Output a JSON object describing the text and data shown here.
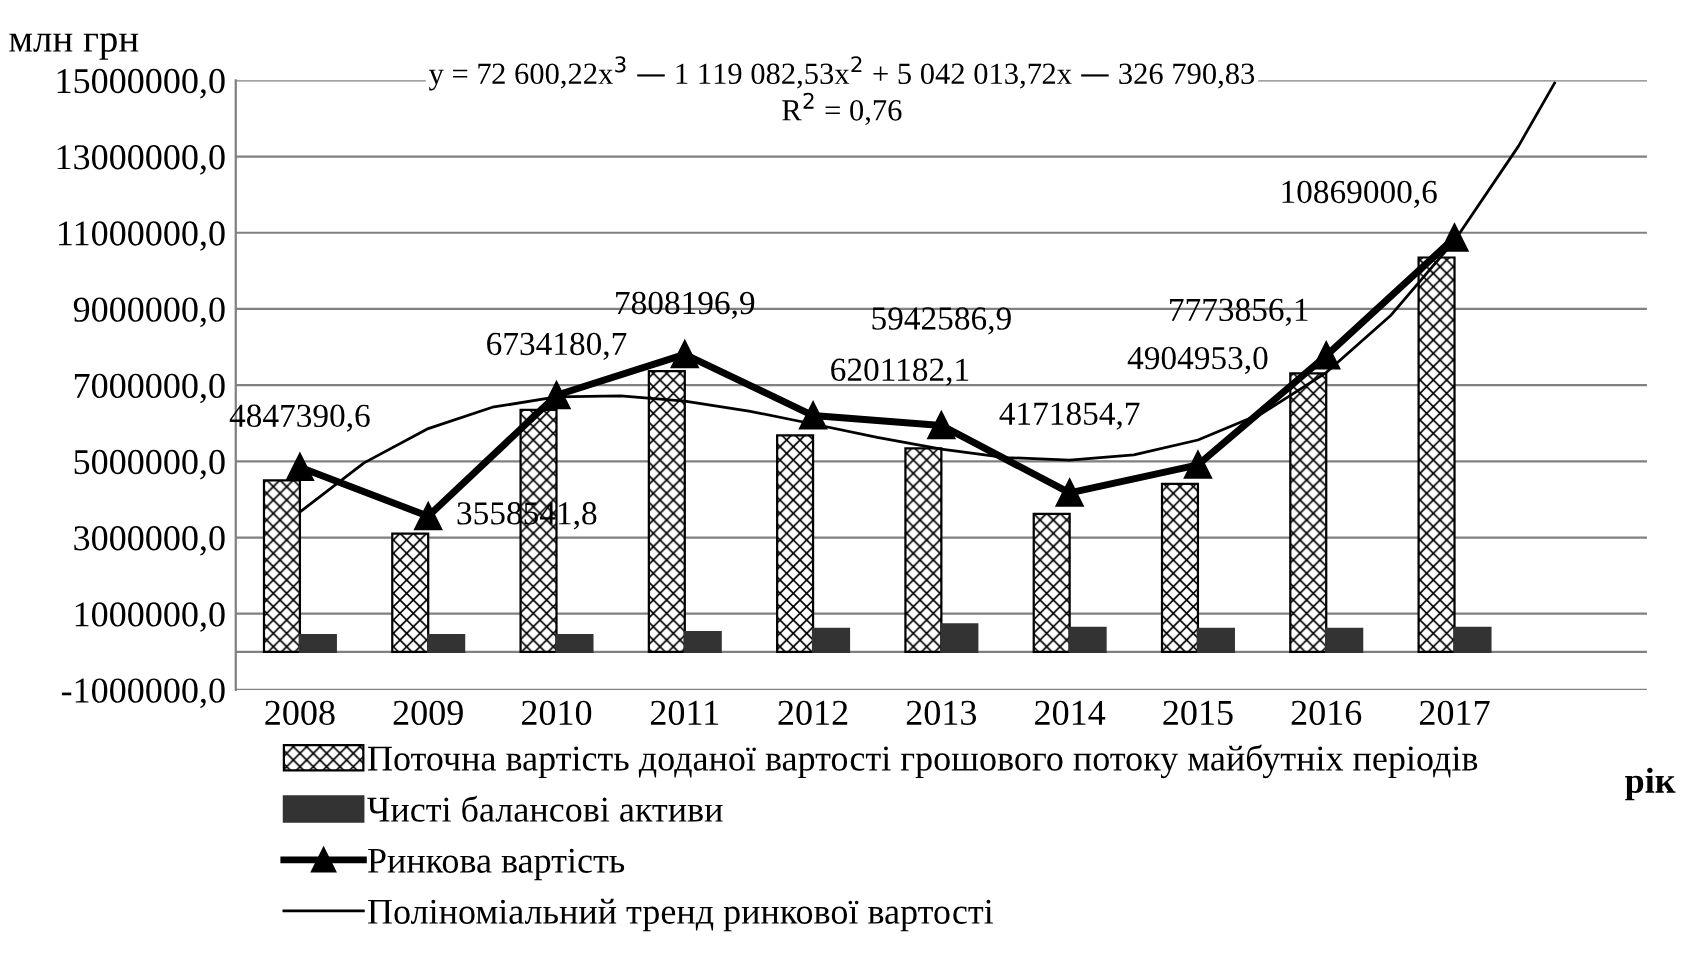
{
  "chart_data": {
    "type": "line",
    "ylabel": "млн грн",
    "xlabel": "рік",
    "annotations": [
      "y = 72 600,22x$^{3}$ — 1 119 082,53x$^{2}$ + 5 042 013,72x — 326 790,83",
      "R$^{2}$ = 0,76"
    ],
    "x": [
      2008,
      2009,
      2010,
      2011,
      2012,
      2013,
      2014,
      2015,
      2016,
      2017
    ],
    "xlim": [
      2007.5,
      2018.5
    ],
    "xticks": [
      2008,
      2009,
      2010,
      2011,
      2012,
      2013,
      2014,
      2015,
      2016,
      2017
    ],
    "ylim": [
      -1000000,
      15000000
    ],
    "yticks": [
      {
        "value": -1000000,
        "label": "-1000000,0"
      },
      {
        "value": 1000000,
        "label": "1000000,0"
      },
      {
        "value": 3000000,
        "label": "3000000,0"
      },
      {
        "value": 5000000,
        "label": "5000000,0"
      },
      {
        "value": 7000000,
        "label": "7000000,0"
      },
      {
        "value": 9000000,
        "label": "9000000,0"
      },
      {
        "value": 11000000,
        "label": "11000000,0"
      },
      {
        "value": 13000000,
        "label": "13000000,0"
      },
      {
        "value": 15000000,
        "label": "15000000,0"
      }
    ],
    "grid": "y",
    "legend": "bottom",
    "ref_lines": [
      {
        "axis": "y",
        "value": 0,
        "color": "#808080"
      }
    ],
    "series": [
      {
        "name": "Поточна вартість доданої вартості грошового потоку майбутніх періодів",
        "type": "bar",
        "color": "#000000",
        "values": [
          4500000,
          3100000,
          6350000,
          7370000,
          5680000,
          5340000,
          3620000,
          4410000,
          7310000,
          10350000
        ]
      },
      {
        "name": "Чисті балансові активи",
        "type": "bar",
        "color": "#333333",
        "values": [
          440000,
          440000,
          440000,
          520000,
          600000,
          720000,
          630000,
          600000,
          600000,
          630000
        ]
      },
      {
        "name": "Ринкова вартість",
        "color": "#000000",
        "marker": "triangle",
        "values": [
          4847390.6,
          3558541.8,
          6734180.7,
          7808196.9,
          6201182.1,
          5942586.9,
          4171854.7,
          4904953.0,
          7773856.1,
          10869000.6
        ],
        "value_labels": [
          "4847390,6",
          "3558541,8",
          "6734180,7",
          "7808196,9",
          "6201182,1",
          "5942586,9",
          "4171854,7",
          "4904953,0",
          "7773856,1",
          "10869000,6"
        ]
      },
      {
        "name": "Поліноміальний тренд ринкової вартості",
        "color": "#000000",
        "marker": "none",
        "x": [
          2008,
          2008.5,
          2009,
          2009.5,
          2010,
          2010.5,
          2011,
          2011.5,
          2012,
          2012.5,
          2013,
          2013.5,
          2014,
          2014.5,
          2015,
          2015.5,
          2016,
          2016.5,
          2017,
          2017.5,
          2017.78
        ],
        "values": [
          3670000,
          4960000,
          5860000,
          6420000,
          6690000,
          6720000,
          6580000,
          6320000,
          5980000,
          5630000,
          5320000,
          5100000,
          5030000,
          5170000,
          5560000,
          6260000,
          7330000,
          8820000,
          10790000,
          13280000,
          14930000
        ]
      }
    ]
  }
}
